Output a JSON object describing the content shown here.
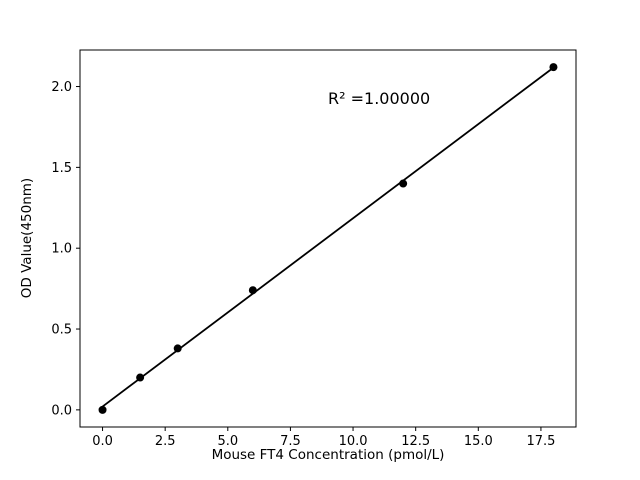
{
  "chart_data": {
    "type": "scatter",
    "x": [
      0.0,
      1.5,
      3.0,
      6.0,
      12.0,
      18.0
    ],
    "y": [
      0.0,
      0.2,
      0.38,
      0.74,
      1.4,
      2.12
    ],
    "title": "",
    "xlabel": "Mouse FT4 Concentration (pmol/L)",
    "ylabel": "OD Value(450nm)",
    "xlim": [
      -0.9,
      18.9
    ],
    "ylim": [
      -0.106,
      2.226
    ],
    "xticks": [
      0.0,
      2.5,
      5.0,
      7.5,
      10.0,
      12.5,
      15.0,
      17.5
    ],
    "xtick_labels": [
      "0.0",
      "2.5",
      "5.0",
      "7.5",
      "10.0",
      "12.5",
      "15.0",
      "17.5"
    ],
    "yticks": [
      0.0,
      0.5,
      1.0,
      1.5,
      2.0
    ],
    "ytick_labels": [
      "0.0",
      "0.5",
      "1.0",
      "1.5",
      "2.0"
    ],
    "annotation": {
      "text": "R² =1.00000",
      "x": 9.0,
      "y": 1.92
    },
    "fit_line": true,
    "grid": false,
    "legend": "none",
    "marker_color": "#000000",
    "line_color": "#000000",
    "axis_color": "#000000",
    "background": "#ffffff"
  }
}
